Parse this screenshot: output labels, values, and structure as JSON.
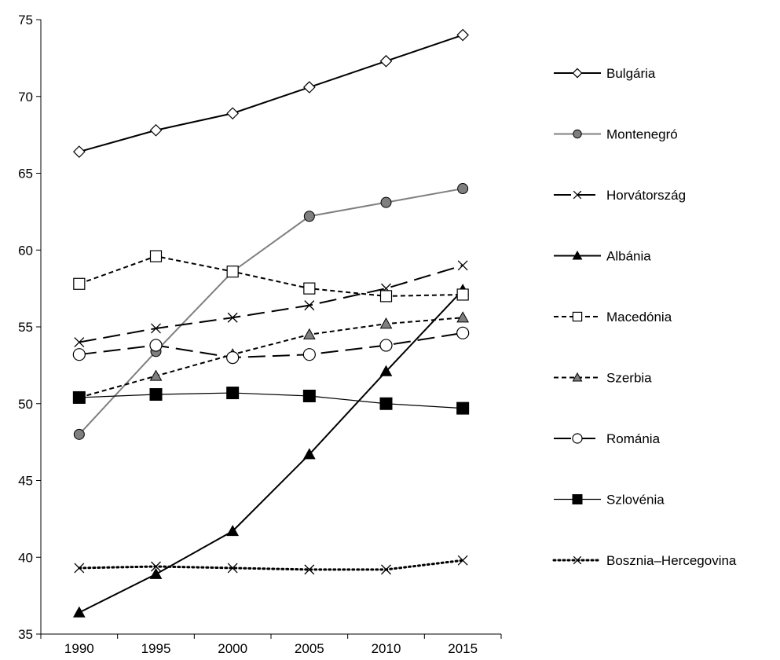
{
  "chart_data": {
    "type": "line",
    "title": "",
    "xlabel": "",
    "ylabel": "",
    "x": [
      1990,
      1995,
      2000,
      2005,
      2010,
      2015
    ],
    "ylim": [
      35,
      75
    ],
    "y_ticks": [
      35,
      40,
      45,
      50,
      55,
      60,
      65,
      70,
      75
    ],
    "grid": false,
    "legend_position": "right",
    "series": [
      {
        "name": "Bulgária",
        "values": [
          66.4,
          67.8,
          68.9,
          70.6,
          72.3,
          74.0
        ],
        "color": "#000000",
        "dash": "solid",
        "marker": "diamond-open"
      },
      {
        "name": "Montenegró",
        "values": [
          48.0,
          53.4,
          58.6,
          62.2,
          63.1,
          64.0
        ],
        "color": "#7f7f7f",
        "dash": "solid",
        "marker": "circle-gray"
      },
      {
        "name": "Horvátország",
        "values": [
          54.0,
          54.9,
          55.6,
          56.4,
          57.5,
          59.0
        ],
        "color": "#000000",
        "dash": "longdash",
        "marker": "x"
      },
      {
        "name": "Albánia",
        "values": [
          36.4,
          38.9,
          41.7,
          46.7,
          52.1,
          57.4
        ],
        "color": "#000000",
        "dash": "solid",
        "marker": "triangle-black"
      },
      {
        "name": "Macedónia",
        "values": [
          57.8,
          59.6,
          58.6,
          57.5,
          57.0,
          57.1
        ],
        "color": "#000000",
        "dash": "shortdash",
        "marker": "square-open"
      },
      {
        "name": "Szerbia",
        "values": [
          50.4,
          51.8,
          53.2,
          54.5,
          55.2,
          55.6
        ],
        "color": "#000000",
        "dash": "shortdash",
        "marker": "triangle-gray"
      },
      {
        "name": "Románia",
        "values": [
          53.2,
          53.8,
          53.0,
          53.2,
          53.8,
          54.6
        ],
        "color": "#000000",
        "dash": "longdash",
        "marker": "circle-open"
      },
      {
        "name": "Szlovénia",
        "values": [
          50.4,
          50.6,
          50.7,
          50.5,
          50.0,
          49.7
        ],
        "color": "#000000",
        "dash": "thin",
        "marker": "square-black"
      },
      {
        "name": "Bosznia–Hercegovina",
        "values": [
          39.3,
          39.4,
          39.3,
          39.2,
          39.2,
          39.8
        ],
        "color": "#000000",
        "dash": "dotted",
        "marker": "x"
      }
    ]
  }
}
